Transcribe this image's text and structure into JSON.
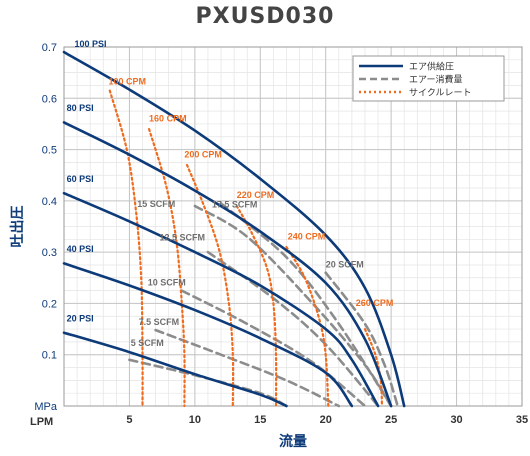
{
  "chart_data": {
    "type": "line",
    "title": "PXUSD030",
    "xlabel": "流量",
    "ylabel": "吐出圧",
    "x_unit": "LPM",
    "y_unit": "MPa",
    "xlim": [
      0,
      35
    ],
    "ylim": [
      0,
      0.7
    ],
    "xticks": [
      5,
      10,
      15,
      20,
      25,
      30,
      35
    ],
    "yticks": [
      0.1,
      0.2,
      0.3,
      0.4,
      0.5,
      0.6,
      0.7
    ],
    "grid": true,
    "legend": {
      "position": "top-right",
      "entries": [
        {
          "label": "エア供給圧",
          "style": "solid",
          "color": "#0d3b7a"
        },
        {
          "label": "エアー消費量",
          "style": "dashed",
          "color": "#8c8c8c"
        },
        {
          "label": "サイクルレート",
          "style": "dotted",
          "color": "#ef6c1f"
        }
      ]
    },
    "series": [
      {
        "name": "100 PSI",
        "group": "air_supply",
        "points": [
          [
            0,
            0.69
          ],
          [
            5,
            0.617
          ],
          [
            10,
            0.537
          ],
          [
            15,
            0.443
          ],
          [
            20,
            0.333
          ],
          [
            23,
            0.23
          ],
          [
            25,
            0.1
          ],
          [
            26,
            0
          ]
        ]
      },
      {
        "name": "80 PSI",
        "group": "air_supply",
        "points": [
          [
            0,
            0.553
          ],
          [
            5,
            0.49
          ],
          [
            10,
            0.42
          ],
          [
            15,
            0.34
          ],
          [
            20,
            0.24
          ],
          [
            23,
            0.13
          ],
          [
            25,
            0
          ]
        ]
      },
      {
        "name": "60 PSI",
        "group": "air_supply",
        "points": [
          [
            0,
            0.415
          ],
          [
            5,
            0.36
          ],
          [
            10,
            0.3
          ],
          [
            15,
            0.235
          ],
          [
            20,
            0.15
          ],
          [
            22,
            0.09
          ],
          [
            24,
            0
          ]
        ]
      },
      {
        "name": "40 PSI",
        "group": "air_supply",
        "points": [
          [
            0,
            0.278
          ],
          [
            5,
            0.235
          ],
          [
            10,
            0.187
          ],
          [
            15,
            0.132
          ],
          [
            20,
            0.065
          ],
          [
            22,
            0
          ]
        ]
      },
      {
        "name": "20 PSI",
        "group": "air_supply",
        "points": [
          [
            0,
            0.143
          ],
          [
            5,
            0.105
          ],
          [
            10,
            0.062
          ],
          [
            15,
            0.022
          ],
          [
            17,
            0
          ]
        ]
      },
      {
        "name": "5 SCFM",
        "group": "air_consumption",
        "points": [
          [
            5,
            0.09
          ],
          [
            10,
            0.06
          ],
          [
            15,
            0.025
          ],
          [
            17,
            0
          ]
        ]
      },
      {
        "name": "7.5 SCFM",
        "group": "air_consumption",
        "points": [
          [
            7,
            0.148
          ],
          [
            12,
            0.1
          ],
          [
            17,
            0.05
          ],
          [
            21,
            0
          ]
        ]
      },
      {
        "name": "10 SCFM",
        "group": "air_consumption",
        "points": [
          [
            9,
            0.225
          ],
          [
            14,
            0.16
          ],
          [
            19,
            0.085
          ],
          [
            23,
            0
          ]
        ]
      },
      {
        "name": "12.5 SCFM",
        "group": "air_consumption",
        "points": [
          [
            11,
            0.3
          ],
          [
            16,
            0.21
          ],
          [
            20,
            0.12
          ],
          [
            24,
            0
          ]
        ]
      },
      {
        "name": "15 SCFM",
        "group": "air_consumption",
        "points": [
          [
            10,
            0.39
          ],
          [
            14,
            0.33
          ],
          [
            19,
            0.2
          ],
          [
            23,
            0.08
          ],
          [
            25,
            0
          ]
        ]
      },
      {
        "name": "17.5 SCFM",
        "group": "air_consumption",
        "points": [
          [
            12,
            0.395
          ],
          [
            17,
            0.29
          ],
          [
            21,
            0.16
          ],
          [
            25,
            0
          ]
        ]
      },
      {
        "name": "20 SCFM",
        "group": "air_consumption",
        "points": [
          [
            20,
            0.26
          ],
          [
            23,
            0.16
          ],
          [
            24.5,
            0.08
          ],
          [
            25.5,
            0
          ]
        ]
      },
      {
        "name": "100 CPM",
        "group": "cycle_rate",
        "points": [
          [
            3.5,
            0.615
          ],
          [
            4.8,
            0.5
          ],
          [
            5.5,
            0.38
          ],
          [
            5.9,
            0.25
          ],
          [
            6,
            0.1
          ],
          [
            6,
            0
          ]
        ]
      },
      {
        "name": "160 CPM",
        "group": "cycle_rate",
        "points": [
          [
            6.5,
            0.54
          ],
          [
            7.8,
            0.43
          ],
          [
            8.6,
            0.32
          ],
          [
            9,
            0.2
          ],
          [
            9.2,
            0.1
          ],
          [
            9.2,
            0
          ]
        ]
      },
      {
        "name": "200 CPM",
        "group": "cycle_rate",
        "points": [
          [
            9.4,
            0.47
          ],
          [
            10.7,
            0.39
          ],
          [
            11.9,
            0.3
          ],
          [
            12.6,
            0.2
          ],
          [
            12.9,
            0.1
          ],
          [
            12.9,
            0
          ]
        ]
      },
      {
        "name": "220 CPM",
        "group": "cycle_rate",
        "points": [
          [
            13.2,
            0.39
          ],
          [
            14.3,
            0.34
          ],
          [
            15.5,
            0.27
          ],
          [
            16,
            0.2
          ],
          [
            16.2,
            0.1
          ],
          [
            16.2,
            0
          ]
        ]
      },
      {
        "name": "240 CPM",
        "group": "cycle_rate",
        "points": [
          [
            17,
            0.31
          ],
          [
            18.4,
            0.25
          ],
          [
            19.5,
            0.17
          ],
          [
            20,
            0.1
          ],
          [
            20.2,
            0
          ]
        ]
      },
      {
        "name": "260 CPM",
        "group": "cycle_rate",
        "points": [
          [
            23,
            0.15
          ],
          [
            23.8,
            0.1
          ],
          [
            24.2,
            0.05
          ],
          [
            24.3,
            0
          ]
        ]
      }
    ],
    "labels": [
      {
        "text": "100 PSI",
        "group": "air_supply",
        "x": 0.8,
        "y": 0.7
      },
      {
        "text": "80 PSI",
        "group": "air_supply",
        "x": 0.2,
        "y": 0.575
      },
      {
        "text": "60 PSI",
        "group": "air_supply",
        "x": 0.2,
        "y": 0.437
      },
      {
        "text": "40 PSI",
        "group": "air_supply",
        "x": 0.2,
        "y": 0.3
      },
      {
        "text": "20 PSI",
        "group": "air_supply",
        "x": 0.2,
        "y": 0.165
      },
      {
        "text": "100 CPM",
        "group": "cycle_rate",
        "x": 3.4,
        "y": 0.627
      },
      {
        "text": "160 CPM",
        "group": "cycle_rate",
        "x": 6.5,
        "y": 0.555
      },
      {
        "text": "200 CPM",
        "group": "cycle_rate",
        "x": 9.2,
        "y": 0.485
      },
      {
        "text": "220 CPM",
        "group": "cycle_rate",
        "x": 13.2,
        "y": 0.406
      },
      {
        "text": "240 CPM",
        "group": "cycle_rate",
        "x": 17.1,
        "y": 0.325
      },
      {
        "text": "260 CPM",
        "group": "cycle_rate",
        "x": 22.3,
        "y": 0.195
      },
      {
        "text": "20 SCFM",
        "group": "air_consumption",
        "x": 20,
        "y": 0.27
      },
      {
        "text": "17.5 SCFM",
        "group": "air_consumption",
        "x": 11.3,
        "y": 0.387
      },
      {
        "text": "15 SCFM",
        "group": "air_consumption",
        "x": 5.6,
        "y": 0.388
      },
      {
        "text": "12.5 SCFM",
        "group": "air_consumption",
        "x": 7.3,
        "y": 0.323
      },
      {
        "text": "10 SCFM",
        "group": "air_consumption",
        "x": 6.4,
        "y": 0.235
      },
      {
        "text": "7.5 SCFM",
        "group": "air_consumption",
        "x": 5.7,
        "y": 0.158
      },
      {
        "text": "5 SCFM",
        "group": "air_consumption",
        "x": 5.1,
        "y": 0.117
      }
    ]
  }
}
